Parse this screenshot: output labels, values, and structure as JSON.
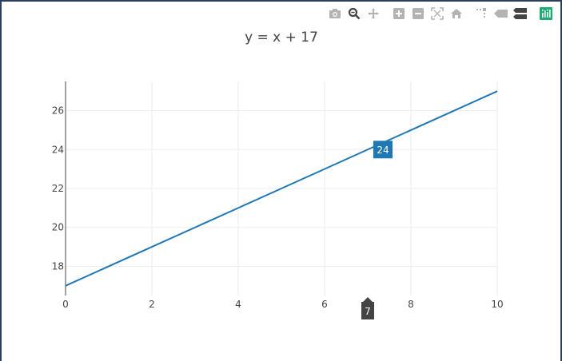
{
  "modebar": {
    "buttons": [
      {
        "name": "camera-icon",
        "color": "#b3b3b3"
      },
      {
        "name": "zoom-icon",
        "color": "#444444"
      },
      {
        "name": "pan-icon",
        "color": "#b3b3b3"
      },
      {
        "name": "zoom-in-icon",
        "color": "#b3b3b3"
      },
      {
        "name": "zoom-out-icon",
        "color": "#b3b3b3"
      },
      {
        "name": "autoscale-icon",
        "color": "#b3b3b3"
      },
      {
        "name": "reset-axes-icon",
        "color": "#b3b3b3"
      },
      {
        "name": "spike-lines-icon",
        "color": "#b3b3b3"
      },
      {
        "name": "hover-closest-icon",
        "color": "#b3b3b3"
      },
      {
        "name": "hover-compare-icon",
        "color": "#444444"
      },
      {
        "name": "chart-studio-icon",
        "color": "#1eae73"
      }
    ]
  },
  "chart_data": {
    "type": "line",
    "title": "y = x + 17",
    "xlabel": "",
    "ylabel": "",
    "x": [
      0,
      1,
      2,
      3,
      4,
      5,
      6,
      7,
      8,
      9,
      10
    ],
    "series": [
      {
        "values": [
          17,
          18,
          19,
          20,
          21,
          22,
          23,
          24,
          25,
          26,
          27
        ],
        "color": "#1f77b4"
      }
    ],
    "xlim": [
      0,
      10
    ],
    "ylim": [
      16.5,
      27.5
    ],
    "xticks": [
      0,
      2,
      4,
      6,
      8,
      10
    ],
    "yticks": [
      18,
      20,
      22,
      24,
      26
    ],
    "grid": true,
    "hover": {
      "x": 7,
      "y": 24,
      "x_label": "7",
      "y_label": "24",
      "x_color": "#444444",
      "y_color": "#1f77b4"
    }
  }
}
